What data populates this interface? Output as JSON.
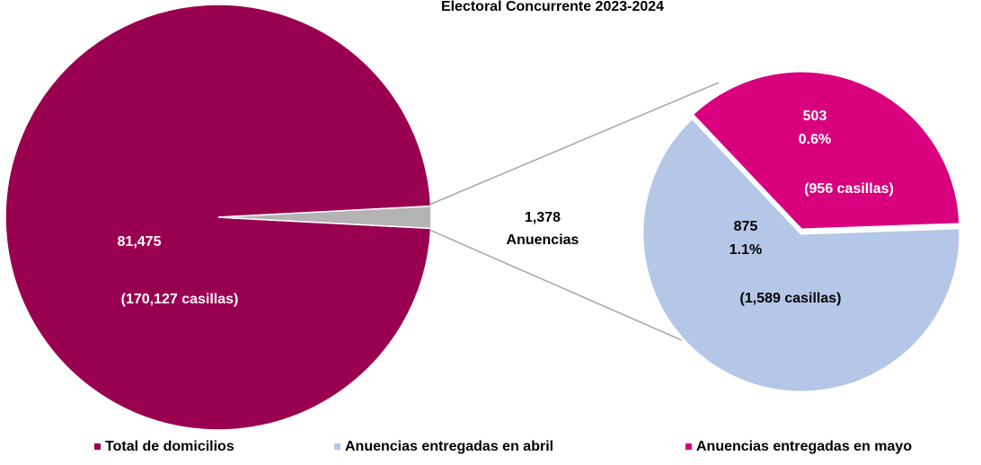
{
  "chart_data": {
    "type": "pie-of-pie",
    "title": "Electoral Concurrente 2023-2024",
    "categories": [
      "Total de domicilios",
      "Anuencias entregadas en abril",
      "Anuencias entregadas en mayo"
    ],
    "values": [
      81475,
      875,
      503
    ],
    "value_labels": [
      "81,475",
      "875",
      "503"
    ],
    "percents": [
      null,
      1.1,
      0.6
    ],
    "percent_labels": [
      null,
      "1.1%",
      "0.6%"
    ],
    "casillas_labels": [
      "(170,127 casillas)",
      "(1,589 casillas)",
      "(956 casillas)"
    ],
    "colors": [
      "#990050",
      "#b4c7e7",
      "#d9007e"
    ],
    "other_value": 1378,
    "other_value_label": "1,378",
    "other_label": "Anuencias",
    "other_color": "#b3b3b3",
    "legend": "bottom"
  }
}
